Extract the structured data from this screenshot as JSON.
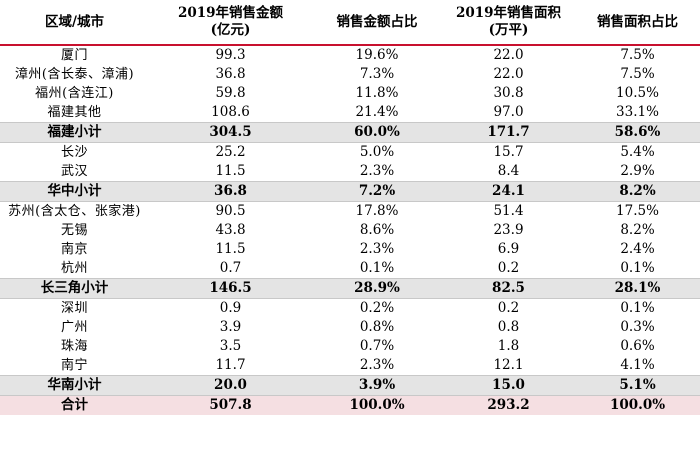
{
  "table": {
    "headers": [
      [
        "区域/城市"
      ],
      [
        "2019年销售金额",
        "(亿元)"
      ],
      [
        "销售金额占比"
      ],
      [
        "2019年销售面积",
        "(万平)"
      ],
      [
        "销售面积占比"
      ]
    ],
    "rows": [
      {
        "type": "city",
        "cells": [
          "厦门",
          "99.3",
          "19.6%",
          "22.0",
          "7.5%"
        ]
      },
      {
        "type": "city",
        "cells": [
          "漳州(含长泰、漳浦)",
          "36.8",
          "7.3%",
          "22.0",
          "7.5%"
        ]
      },
      {
        "type": "city",
        "cells": [
          "福州(含连江)",
          "59.8",
          "11.8%",
          "30.8",
          "10.5%"
        ]
      },
      {
        "type": "city",
        "cells": [
          "福建其他",
          "108.6",
          "21.4%",
          "97.0",
          "33.1%"
        ]
      },
      {
        "type": "sub",
        "cells": [
          "福建小计",
          "304.5",
          "60.0%",
          "171.7",
          "58.6%"
        ]
      },
      {
        "type": "city",
        "cells": [
          "长沙",
          "25.2",
          "5.0%",
          "15.7",
          "5.4%"
        ]
      },
      {
        "type": "city",
        "cells": [
          "武汉",
          "11.5",
          "2.3%",
          "8.4",
          "2.9%"
        ]
      },
      {
        "type": "sub",
        "cells": [
          "华中小计",
          "36.8",
          "7.2%",
          "24.1",
          "8.2%"
        ]
      },
      {
        "type": "city",
        "cells": [
          "苏州(含太仓、张家港)",
          "90.5",
          "17.8%",
          "51.4",
          "17.5%"
        ]
      },
      {
        "type": "city",
        "cells": [
          "无锡",
          "43.8",
          "8.6%",
          "23.9",
          "8.2%"
        ]
      },
      {
        "type": "city",
        "cells": [
          "南京",
          "11.5",
          "2.3%",
          "6.9",
          "2.4%"
        ]
      },
      {
        "type": "city",
        "cells": [
          "杭州",
          "0.7",
          "0.1%",
          "0.2",
          "0.1%"
        ]
      },
      {
        "type": "sub",
        "cells": [
          "长三角小计",
          "146.5",
          "28.9%",
          "82.5",
          "28.1%"
        ]
      },
      {
        "type": "city",
        "cells": [
          "深圳",
          "0.9",
          "0.2%",
          "0.2",
          "0.1%"
        ]
      },
      {
        "type": "city",
        "cells": [
          "广州",
          "3.9",
          "0.8%",
          "0.8",
          "0.3%"
        ]
      },
      {
        "type": "city",
        "cells": [
          "珠海",
          "3.5",
          "0.7%",
          "1.8",
          "0.6%"
        ]
      },
      {
        "type": "city",
        "cells": [
          "南宁",
          "11.7",
          "2.3%",
          "12.1",
          "4.1%"
        ]
      },
      {
        "type": "sub",
        "cells": [
          "华南小计",
          "20.0",
          "3.9%",
          "15.0",
          "5.1%"
        ]
      },
      {
        "type": "total",
        "cells": [
          "合计",
          "507.8",
          "100.0%",
          "293.2",
          "100.0%"
        ]
      }
    ]
  }
}
